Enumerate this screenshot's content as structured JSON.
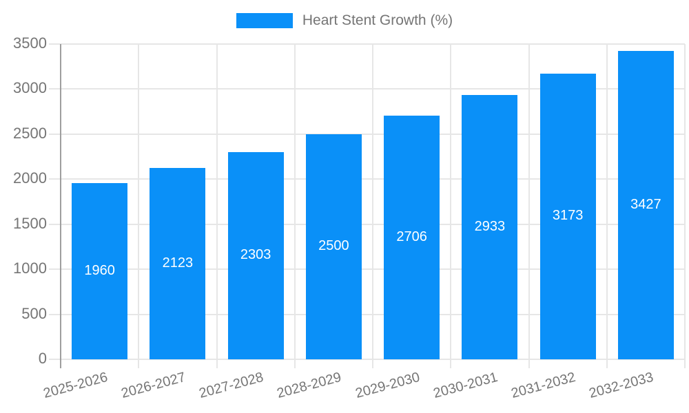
{
  "chart_data": {
    "type": "bar",
    "title": "Heart Stent Growth (%)",
    "categories": [
      "2025-2026",
      "2026-2027",
      "2027-2028",
      "2028-2029",
      "2029-2030",
      "2030-2031",
      "2031-2032",
      "2032-2033"
    ],
    "series": [
      {
        "name": "Heart Stent Growth (%)",
        "values": [
          1960,
          2123,
          2303,
          2500,
          2706,
          2933,
          3173,
          3427
        ]
      }
    ],
    "bar_value_labels": [
      "1960",
      "2123",
      "2303",
      "2500",
      "2706",
      "2933",
      "3173",
      "3427"
    ],
    "xlabel": "",
    "ylabel": "",
    "ylim": [
      0,
      3500
    ],
    "yticks": [
      0,
      500,
      1000,
      1500,
      2000,
      2500,
      3000,
      3500
    ],
    "grid": true,
    "legend_position": "top",
    "colors": {
      "bar": "#0a90f8",
      "bar_value_text": "#ffffff",
      "grid_line": "#e6e6e6",
      "axis_line": "#9e9e9e",
      "tick_label": "#757575",
      "legend_text": "#757575",
      "background": "#ffffff"
    }
  }
}
